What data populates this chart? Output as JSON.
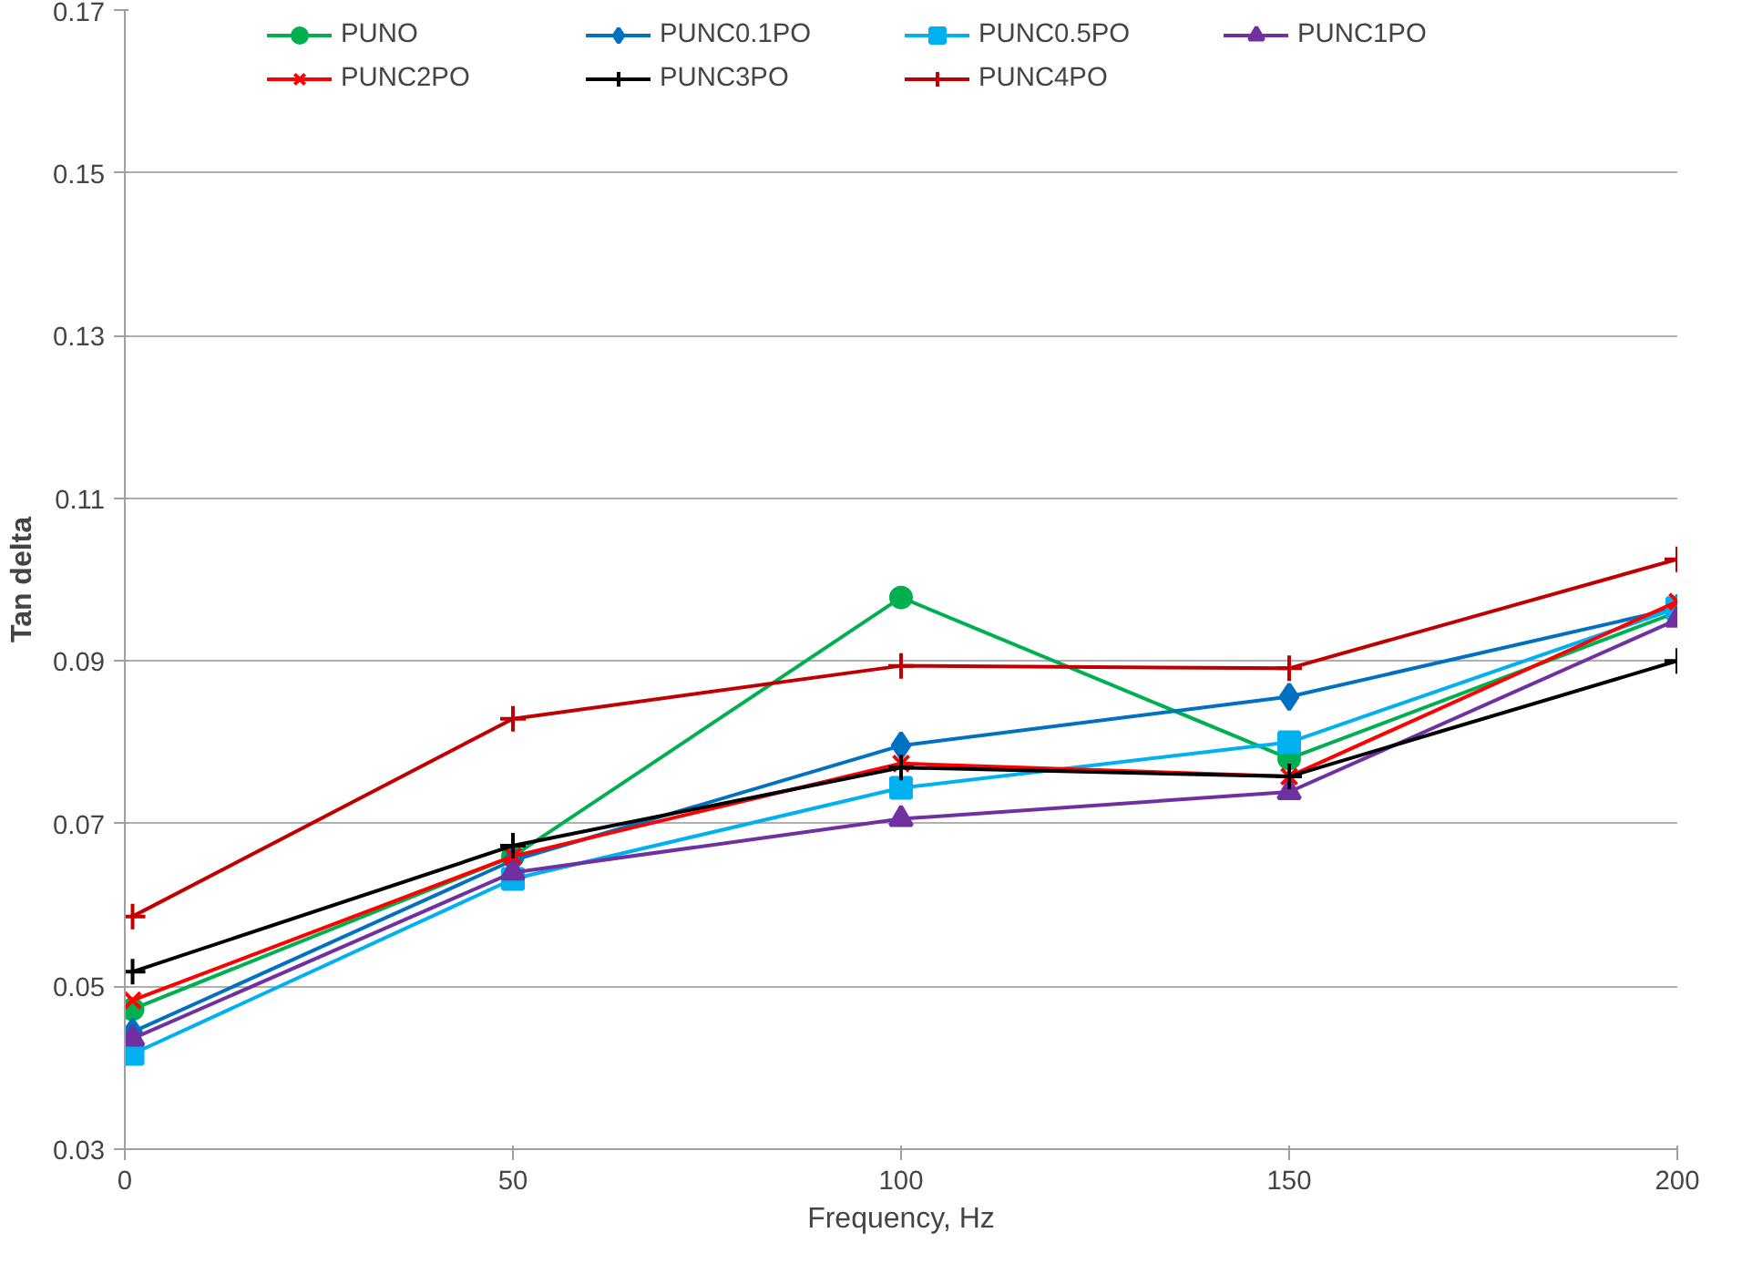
{
  "chart_data": {
    "type": "line",
    "xlabel": "Frequency, Hz",
    "ylabel": "Tan delta",
    "x": [
      1,
      50,
      100,
      150,
      200
    ],
    "xlim": [
      0,
      200
    ],
    "xticks": [
      0,
      50,
      100,
      150,
      200
    ],
    "ylim": [
      0.03,
      0.17
    ],
    "yticks": [
      0.03,
      0.05,
      0.07,
      0.09,
      0.11,
      0.13,
      0.15,
      0.17
    ],
    "grid": "y",
    "legend": "top",
    "line_style": "solid",
    "series": [
      {
        "name": "PUNO",
        "color": "#00b050",
        "marker": "circle",
        "values": [
          0.0472,
          0.066,
          0.0978,
          0.078,
          0.096
        ]
      },
      {
        "name": "PUNC0.1PO",
        "color": "#0070c0",
        "marker": "diamond",
        "values": [
          0.0444,
          0.0655,
          0.0796,
          0.0856,
          0.0965
        ]
      },
      {
        "name": "PUNC0.5PO",
        "color": "#00b0f0",
        "marker": "square",
        "values": [
          0.0417,
          0.0632,
          0.0744,
          0.08,
          0.0965
        ]
      },
      {
        "name": "PUNC1PO",
        "color": "#7030a0",
        "marker": "triangle",
        "values": [
          0.0436,
          0.064,
          0.0706,
          0.0739,
          0.0951
        ]
      },
      {
        "name": "PUNC2PO",
        "color": "#ff0000",
        "marker": "x",
        "values": [
          0.0483,
          0.066,
          0.0774,
          0.0758,
          0.0973
        ]
      },
      {
        "name": "PUNC3PO",
        "color": "#000000",
        "marker": "cross",
        "values": [
          0.0518,
          0.0673,
          0.0769,
          0.0758,
          0.09
        ]
      },
      {
        "name": "PUNC4PO",
        "color": "#c00000",
        "marker": "cross",
        "values": [
          0.0586,
          0.0829,
          0.0894,
          0.0891,
          0.1025
        ]
      }
    ]
  }
}
